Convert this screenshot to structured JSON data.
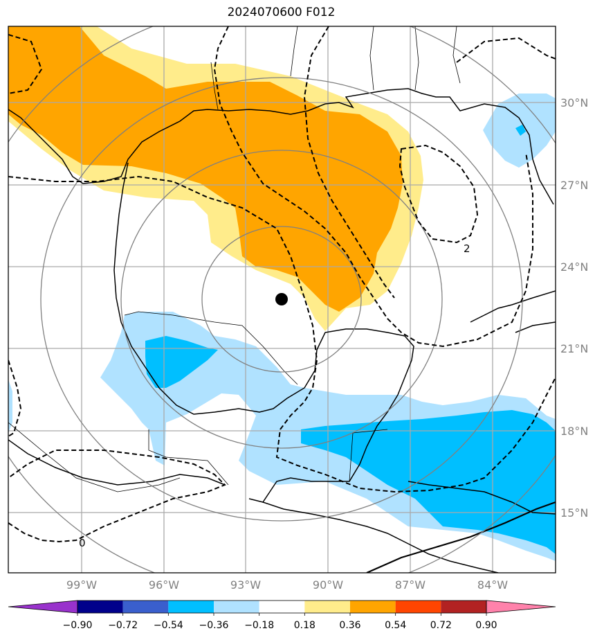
{
  "title": "2024070600 F012",
  "map": {
    "lon_labels": [
      "99°W",
      "96°W",
      "93°W",
      "90°W",
      "87°W",
      "84°W"
    ],
    "lat_labels": [
      "30°N",
      "27°N",
      "24°N",
      "21°N",
      "18°N",
      "15°N"
    ],
    "contour_labels": [
      "2",
      "0"
    ],
    "storm_center": "storm-center-marker"
  },
  "colorbar": {
    "colors": [
      "#9932CC",
      "#00008B",
      "#3A5FCD",
      "#00BFFF",
      "#B0E2FF",
      "#FFFFFF",
      "#FFEC8B",
      "#FFA500",
      "#FF4500",
      "#B22222",
      "#FF82AB"
    ],
    "tick_labels": [
      "−0.90",
      "−0.72",
      "−0.54",
      "−0.36",
      "−0.18",
      "0.18",
      "0.36",
      "0.54",
      "0.72",
      "0.90"
    ]
  },
  "colors": {
    "orange": "#FFA500",
    "light_yellow": "#FFEC8B",
    "light_blue": "#B0E2FF",
    "blue": "#00BFFF",
    "grid": "#A9A9A9",
    "range_rings": "#808080"
  }
}
